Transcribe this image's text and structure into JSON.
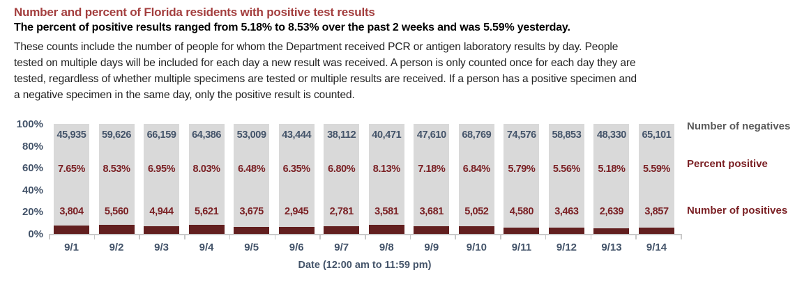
{
  "header": {
    "title": "Number and percent of Florida residents with positive test results",
    "subtitle": "The percent of positive results ranged from 5.18% to 8.53% over the past 2 weeks and was 5.59% yesterday.",
    "body_lines": [
      "These counts include the number of people for whom the Department received PCR or antigen laboratory results by day. People",
      "tested on multiple days will be included for each day a new result was received. A person is only counted once for each day they are",
      "tested, regardless of whether multiple specimens are tested or multiple results are received. If a person has a positive specimen and",
      "a negative specimen in the same day, only the positive result is counted."
    ]
  },
  "colors": {
    "title_red": "#A33E3E",
    "slate": "#44546A",
    "maroon_text": "#7B2125",
    "maroon_bar": "#621F1F",
    "bar_gray": "#D9D9D9",
    "legend_gray": "#595959",
    "axis_gray": "#C9C9C9"
  },
  "chart_data": {
    "type": "bar",
    "subtype": "100-percent-stacked-column",
    "title": "Number and percent of Florida residents with positive test results",
    "categories": [
      "9/1",
      "9/2",
      "9/3",
      "9/4",
      "9/5",
      "9/6",
      "9/7",
      "9/8",
      "9/9",
      "9/10",
      "9/11",
      "9/12",
      "9/13",
      "9/14"
    ],
    "series": [
      {
        "name": "Number of negatives",
        "values": [
          45935,
          59626,
          66159,
          64386,
          53009,
          43444,
          38112,
          40471,
          47610,
          68769,
          74576,
          58853,
          48330,
          65101
        ],
        "labels": [
          "45,935",
          "59,626",
          "66,159",
          "64,386",
          "53,009",
          "43,444",
          "38,112",
          "40,471",
          "47,610",
          "68,769",
          "74,576",
          "58,853",
          "48,330",
          "65,101"
        ],
        "label_color": "#44546A"
      },
      {
        "name": "Percent positive",
        "values": [
          7.65,
          8.53,
          6.95,
          8.03,
          6.48,
          6.35,
          6.8,
          8.13,
          7.18,
          6.84,
          5.79,
          5.56,
          5.18,
          5.59
        ],
        "labels": [
          "7.65%",
          "8.53%",
          "6.95%",
          "8.03%",
          "6.48%",
          "6.35%",
          "6.80%",
          "8.13%",
          "7.18%",
          "6.84%",
          "5.79%",
          "5.56%",
          "5.18%",
          "5.59%"
        ],
        "label_color": "#7B2125"
      },
      {
        "name": "Number of positives",
        "values": [
          3804,
          5560,
          4944,
          5621,
          3675,
          2945,
          2781,
          3581,
          3681,
          5052,
          4580,
          3463,
          2639,
          3857
        ],
        "labels": [
          "3,804",
          "5,560",
          "4,944",
          "5,621",
          "3,675",
          "2,945",
          "2,781",
          "3,581",
          "3,681",
          "5,052",
          "4,580",
          "3,463",
          "2,639",
          "3,857"
        ],
        "label_color": "#7B2125"
      }
    ],
    "xlabel": "Date (12:00 am to 11:59 pm)",
    "ylabel": "",
    "y_ticks": [
      "0%",
      "20%",
      "40%",
      "60%",
      "80%",
      "100%"
    ],
    "ylim": [
      0,
      100
    ],
    "grid": false,
    "legend_position": "right",
    "legend": [
      {
        "label": "Number of negatives",
        "color": "#595959"
      },
      {
        "label": "Percent positive",
        "color": "#7B2125"
      },
      {
        "label": "Number of positives",
        "color": "#7B2125"
      }
    ]
  }
}
